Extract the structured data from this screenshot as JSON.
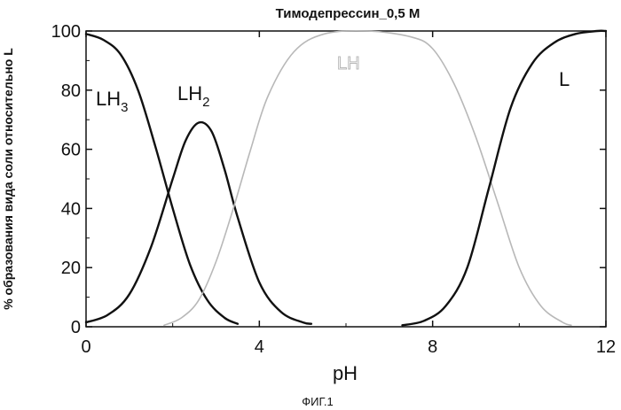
{
  "chart_data": {
    "type": "line",
    "title": "Тимодепрессин_0,5 М",
    "xlabel": "pH",
    "ylabel": "% образования вида соли относительно L",
    "xlim": [
      0,
      12
    ],
    "ylim": [
      0,
      100
    ],
    "xticks": [
      0,
      4,
      8,
      12
    ],
    "yticks": [
      0,
      20,
      40,
      60,
      80,
      100
    ],
    "grid": false,
    "legend": "none",
    "series": [
      {
        "name": "LH3",
        "label_main": "LH",
        "label_sub": "3",
        "color": "#111111",
        "x": [
          0,
          0.4,
          0.8,
          1.2,
          1.6,
          2.0,
          2.4,
          2.8,
          3.2,
          3.5
        ],
        "y": [
          99,
          97,
          92,
          80,
          61,
          40,
          21,
          9,
          3,
          1
        ]
      },
      {
        "name": "LH2",
        "label_main": "LH",
        "label_sub": "2",
        "color": "#111111",
        "x": [
          0,
          0.5,
          1.0,
          1.5,
          2.0,
          2.3,
          2.6,
          2.9,
          3.2,
          3.5,
          4.0,
          4.5,
          5.0,
          5.2
        ],
        "y": [
          1.5,
          4,
          11,
          27,
          50,
          63,
          69,
          66,
          53,
          37,
          15,
          5,
          1.5,
          1
        ]
      },
      {
        "name": "LH",
        "label_main": "LH",
        "label_sub": "",
        "color": "#b8b8b8",
        "x": [
          1.8,
          2.2,
          2.6,
          3.0,
          3.4,
          3.8,
          4.2,
          4.8,
          5.5,
          6.5,
          7.5,
          8.0,
          8.5,
          9.0,
          9.5,
          10.0,
          10.5,
          11.0,
          11.2
        ],
        "y": [
          0.5,
          3,
          9,
          22,
          40,
          60,
          78,
          93,
          99,
          100,
          98,
          94,
          82,
          64,
          42,
          20,
          7,
          1.5,
          0.5
        ]
      },
      {
        "name": "L",
        "label_main": "L",
        "label_sub": "",
        "color": "#111111",
        "x": [
          7.3,
          7.8,
          8.3,
          8.8,
          9.3,
          9.8,
          10.3,
          10.8,
          11.3,
          11.8,
          12.0
        ],
        "y": [
          0.5,
          2,
          7,
          20,
          47,
          74,
          89,
          96,
          99,
          100,
          100
        ]
      }
    ]
  },
  "caption": "ФИГ.1"
}
